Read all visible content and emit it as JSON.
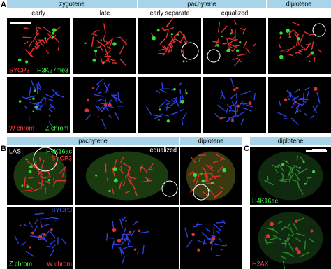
{
  "panel_a": {
    "label": "A",
    "stages": [
      "zygotene",
      "pachytene",
      "diplotene"
    ],
    "substages": [
      "early",
      "late",
      "early separate",
      "equalized"
    ],
    "row1_labels": [
      "SYCP3",
      "H3K27me3"
    ],
    "row2_labels": [
      "W chrom",
      "Z chrom"
    ]
  },
  "panel_b": {
    "label": "B",
    "stages": [
      "pachytene",
      "diplotene"
    ],
    "row1_labels": [
      "LAS",
      "H4K16ac",
      "SYCP3",
      "equalized"
    ],
    "row2_labels": [
      "SYCP3",
      "Z chrom",
      "W chrom"
    ]
  },
  "panel_c": {
    "label": "C",
    "stage": "diplotene",
    "row1_label": "H4K16ac",
    "row2_label": "H2AX"
  }
}
